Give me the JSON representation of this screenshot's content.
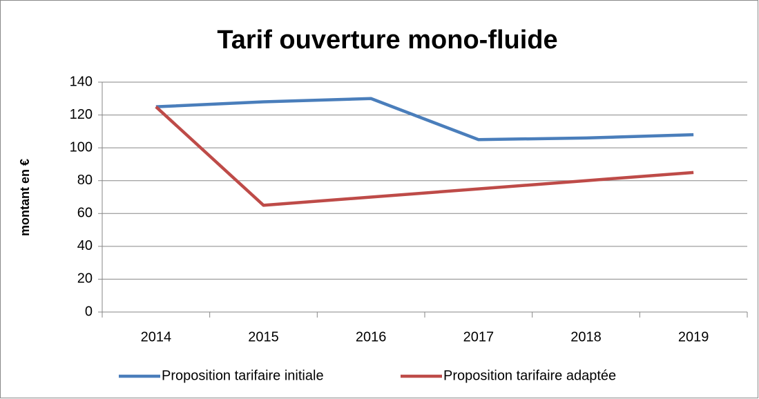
{
  "chart_data": {
    "type": "line",
    "title": "Tarif ouverture mono-fluide",
    "y_label": "montant en €",
    "categories": [
      "2014",
      "2015",
      "2016",
      "2017",
      "2018",
      "2019"
    ],
    "series": [
      {
        "name": "Proposition tarifaire initiale",
        "color": "#4a7ebb",
        "values": [
          125,
          128,
          130,
          105,
          106,
          108
        ]
      },
      {
        "name": "Proposition tarifaire adaptée",
        "color": "#be4b48",
        "values": [
          125,
          65,
          70,
          75,
          80,
          85
        ]
      }
    ],
    "ylim": [
      0,
      140
    ],
    "yticks": [
      0,
      20,
      40,
      60,
      80,
      100,
      120,
      140
    ],
    "grid": true,
    "legend": "bottom"
  }
}
